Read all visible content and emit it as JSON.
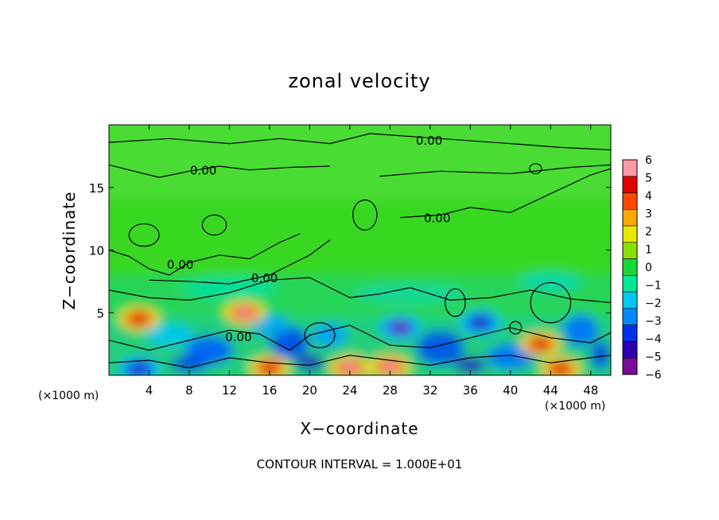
{
  "chart_data": {
    "type": "heatmap",
    "title": "zonal velocity",
    "xlabel": "X−coordinate",
    "ylabel": "Z−coordinate",
    "x_scale_note": "(×1000 m)",
    "x_scale_note_right": "(×1000 m)",
    "xlim": [
      0,
      50
    ],
    "ylim": [
      0,
      20
    ],
    "x_ticks": [
      "4",
      "8",
      "12",
      "16",
      "20",
      "24",
      "28",
      "32",
      "36",
      "40",
      "44",
      "48"
    ],
    "y_ticks": [
      "5",
      "10",
      "15"
    ],
    "colorbar": {
      "ticks": [
        "6",
        "5",
        "4",
        "3",
        "2",
        "1",
        "0",
        "−1",
        "−2",
        "−3",
        "−4",
        "−5",
        "−6"
      ],
      "range": [
        -6,
        6
      ],
      "colors": [
        "#7a0a9a",
        "#2a00b0",
        "#0030e8",
        "#0088ff",
        "#00c8f0",
        "#00e898",
        "#18d838",
        "#88e000",
        "#e8e800",
        "#ffa800",
        "#ff4800",
        "#e00000",
        "#ff9aa8"
      ]
    },
    "contour_labels": [
      "0.00",
      "0.00",
      "0.00",
      "0.00",
      "0.00",
      "0.00"
    ],
    "features": [
      {
        "x": 3,
        "z": 4.5,
        "value": 5
      },
      {
        "x": 13.5,
        "z": 5,
        "value": 6
      },
      {
        "x": 29,
        "z": 3.8,
        "value": -6
      },
      {
        "x": 37,
        "z": 4.2,
        "value": -5
      },
      {
        "x": 43,
        "z": 2.5,
        "value": 5
      },
      {
        "x": 24,
        "z": 0.6,
        "value": 6
      },
      {
        "x": 28,
        "z": 0.7,
        "value": 6
      },
      {
        "x": 3,
        "z": 0.5,
        "value": -5
      },
      {
        "x": 16,
        "z": 0.6,
        "value": 5
      },
      {
        "x": 45,
        "z": 0.5,
        "value": 5
      }
    ],
    "grid": false
  },
  "footnote": "CONTOUR INTERVAL = 1.000E+01"
}
